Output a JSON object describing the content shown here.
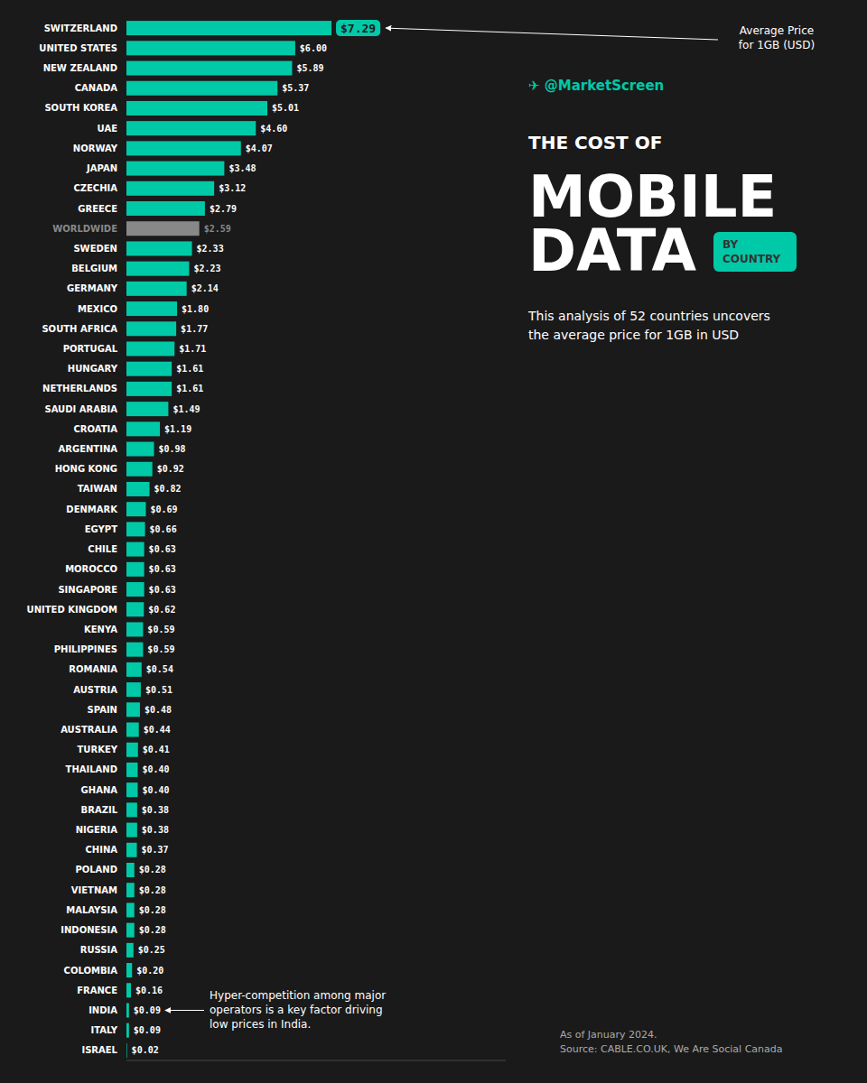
{
  "chart_data": {
    "type": "bar",
    "orientation": "horizontal",
    "handle": "✈  @MarketScreen",
    "kicker": "THE COST OF",
    "title": "MOBILE\nDATA",
    "title_sub": "BY\nCOUNTRY",
    "subtitle": "This analysis of 52 countries uncovers\nthe average price for 1GB in USD",
    "xlabel": "Average Price\nfor 1GB (USD)",
    "annotations": [
      {
        "text": "Hyper-competition among major\noperators is a key factor driving\nlow prices in India.",
        "category": "INDIA"
      }
    ],
    "source": "As of January 2024.\nSource: CABLE.CO.UK, We Are Social Canada",
    "categories": [
      "SWITZERLAND",
      "UNITED STATES",
      "NEW ZEALAND",
      "CANADA",
      "SOUTH KOREA",
      "UAE",
      "NORWAY",
      "JAPAN",
      "CZECHIA",
      "GREECE",
      "WORLDWIDE",
      "SWEDEN",
      "BELGIUM",
      "GERMANY",
      "MEXICO",
      "SOUTH AFRICA",
      "PORTUGAL",
      "HUNGARY",
      "NETHERLANDS",
      "SAUDI ARABIA",
      "CROATIA",
      "ARGENTINA",
      "HONG KONG",
      "TAIWAN",
      "DENMARK",
      "EGYPT",
      "CHILE",
      "MOROCCO",
      "SINGAPORE",
      "UNITED KINGDOM",
      "KENYA",
      "PHILIPPINES",
      "ROMANIA",
      "AUSTRIA",
      "SPAIN",
      "AUSTRALIA",
      "TURKEY",
      "THAILAND",
      "GHANA",
      "BRAZIL",
      "NIGERIA",
      "CHINA",
      "POLAND",
      "VIETNAM",
      "MALAYSIA",
      "INDONESIA",
      "RUSSIA",
      "COLOMBIA",
      "FRANCE",
      "INDIA",
      "ITALY",
      "ISRAEL"
    ],
    "values": [
      7.29,
      6.0,
      5.89,
      5.37,
      5.01,
      4.6,
      4.07,
      3.48,
      3.12,
      2.79,
      2.59,
      2.33,
      2.23,
      2.14,
      1.8,
      1.77,
      1.71,
      1.61,
      1.61,
      1.49,
      1.19,
      0.98,
      0.92,
      0.82,
      0.69,
      0.66,
      0.63,
      0.63,
      0.63,
      0.62,
      0.59,
      0.59,
      0.54,
      0.51,
      0.48,
      0.44,
      0.41,
      0.4,
      0.4,
      0.38,
      0.38,
      0.37,
      0.28,
      0.28,
      0.28,
      0.28,
      0.25,
      0.2,
      0.16,
      0.09,
      0.09,
      0.02
    ],
    "value_labels": [
      "$7.29",
      "$6.00",
      "$5.89",
      "$5.37",
      "$5.01",
      "$4.60",
      "$4.07",
      "$3.48",
      "$3.12",
      "$2.79",
      "$2.59",
      "$2.33",
      "$2.23",
      "$2.14",
      "$1.80",
      "$1.77",
      "$1.71",
      "$1.61",
      "$1.61",
      "$1.49",
      "$1.19",
      "$0.98",
      "$0.92",
      "$0.82",
      "$0.69",
      "$0.66",
      "$0.63",
      "$0.63",
      "$0.63",
      "$0.62",
      "$0.59",
      "$0.59",
      "$0.54",
      "$0.51",
      "$0.48",
      "$0.44",
      "$0.41",
      "$0.40",
      "$0.40",
      "$0.38",
      "$0.38",
      "$0.37",
      "$0.28",
      "$0.28",
      "$0.28",
      "$0.28",
      "$0.25",
      "$0.20",
      "$0.16",
      "$0.09",
      "$0.09",
      "$0.02"
    ],
    "colors": [
      "#00C9A7",
      "#00C9A7",
      "#00C9A7",
      "#00C9A7",
      "#00C9A7",
      "#00C9A7",
      "#00C9A7",
      "#00C9A7",
      "#00C9A7",
      "#00C9A7",
      "#888888",
      "#00C9A7",
      "#00C9A7",
      "#00C9A7",
      "#00C9A7",
      "#00C9A7",
      "#00C9A7",
      "#00C9A7",
      "#00C9A7",
      "#00C9A7",
      "#00C9A7",
      "#00C9A7",
      "#00C9A7",
      "#00C9A7",
      "#00C9A7",
      "#00C9A7",
      "#00C9A7",
      "#00C9A7",
      "#00C9A7",
      "#00C9A7",
      "#00C9A7",
      "#00C9A7",
      "#00C9A7",
      "#00C9A7",
      "#00C9A7",
      "#00C9A7",
      "#00C9A7",
      "#00C9A7",
      "#00C9A7",
      "#00C9A7",
      "#00C9A7",
      "#00C9A7",
      "#00C9A7",
      "#00C9A7",
      "#00C9A7",
      "#00C9A7",
      "#00C9A7",
      "#00C9A7",
      "#00C9A7",
      "#00C9A7",
      "#00C9A7",
      "#00C9A7"
    ],
    "data_labels": true,
    "xlim": [
      0,
      13.4865
    ],
    "tick_labels": "y",
    "grid": false
  }
}
